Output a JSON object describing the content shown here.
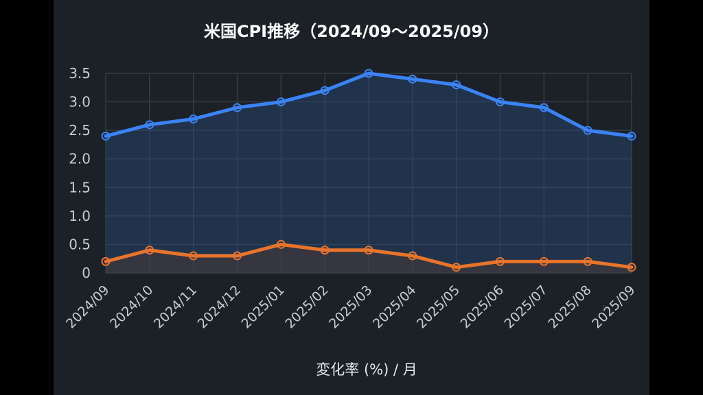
{
  "chart_data": {
    "type": "line",
    "title": "米国CPI推移（2024/09〜2025/09）",
    "xlabel": "変化率 (%) / 月",
    "ylabel": "",
    "categories": [
      "2024/09",
      "2024/10",
      "2024/11",
      "2024/12",
      "2025/01",
      "2025/02",
      "2025/03",
      "2025/04",
      "2025/05",
      "2025/06",
      "2025/07",
      "2025/08",
      "2025/09"
    ],
    "yticks": [
      "0",
      "0.5",
      "1.0",
      "1.5",
      "2.0",
      "2.5",
      "3.0",
      "3.5"
    ],
    "ylim": [
      0,
      3.5
    ],
    "grid": true,
    "legend": "none",
    "series": [
      {
        "color": "#3b82f6",
        "fill": "#2a4a78",
        "values": [
          2.4,
          2.6,
          2.7,
          2.9,
          3.0,
          3.2,
          3.5,
          3.4,
          3.3,
          3.0,
          2.9,
          2.5,
          2.4
        ]
      },
      {
        "color": "#e8742c",
        "fill": "#4a3a33",
        "values": [
          0.2,
          0.4,
          0.3,
          0.3,
          0.5,
          0.4,
          0.4,
          0.3,
          0.1,
          0.2,
          0.2,
          0.2,
          0.1
        ]
      }
    ]
  }
}
